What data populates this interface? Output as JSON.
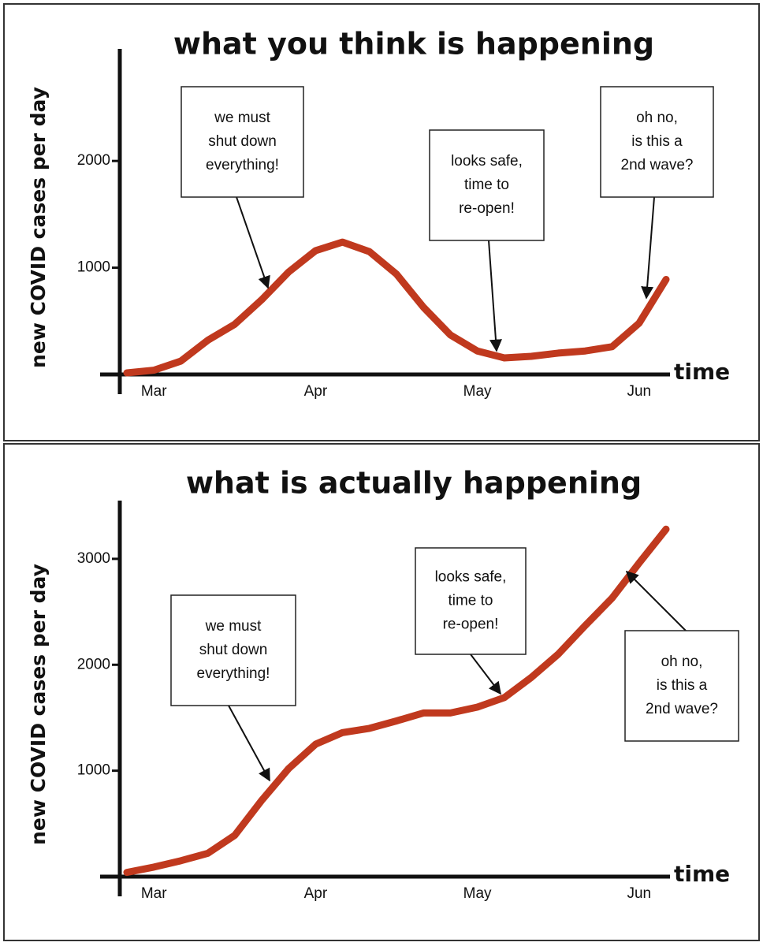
{
  "chart_data": [
    {
      "type": "line",
      "title": "what you think is happening",
      "y_label": "new COVID cases per day",
      "x_label": "time",
      "categories": [
        null,
        "Mar",
        null,
        null,
        null,
        null,
        null,
        "Apr",
        null,
        null,
        null,
        null,
        null,
        "May",
        null,
        null,
        null,
        null,
        null,
        "Jun",
        null
      ],
      "values": [
        15,
        40,
        125,
        320,
        470,
        700,
        960,
        1160,
        1240,
        1150,
        940,
        630,
        370,
        220,
        155,
        170,
        200,
        220,
        260,
        480,
        890
      ],
      "color": "#c0391e",
      "ylim": [
        0,
        3050
      ],
      "yticks": [
        1000,
        2000
      ],
      "annotations": [
        {
          "text": [
            "we must",
            "shut down",
            "everything!"
          ]
        },
        {
          "text": [
            "looks safe,",
            "time to",
            "re-open!"
          ]
        },
        {
          "text": [
            "oh no,",
            "is this a",
            "2nd wave?"
          ]
        }
      ]
    },
    {
      "type": "line",
      "title": "what is actually happening",
      "y_label": "new COVID cases per day",
      "x_label": "time",
      "categories": [
        null,
        "Mar",
        null,
        null,
        null,
        null,
        null,
        "Apr",
        null,
        null,
        null,
        null,
        null,
        "May",
        null,
        null,
        null,
        null,
        null,
        "Jun",
        null
      ],
      "values": [
        40,
        90,
        150,
        220,
        390,
        720,
        1020,
        1250,
        1360,
        1400,
        1470,
        1545,
        1545,
        1600,
        1690,
        1880,
        2100,
        2370,
        2630,
        2960,
        3280
      ],
      "color": "#c0391e",
      "ylim": [
        0,
        3550
      ],
      "yticks": [
        1000,
        2000,
        3000
      ],
      "annotations": [
        {
          "text": [
            "we must",
            "shut down",
            "everything!"
          ]
        },
        {
          "text": [
            "looks safe,",
            "time to",
            "re-open!"
          ]
        },
        {
          "text": [
            "oh no,",
            "is this a",
            "2nd wave?"
          ]
        }
      ]
    }
  ]
}
